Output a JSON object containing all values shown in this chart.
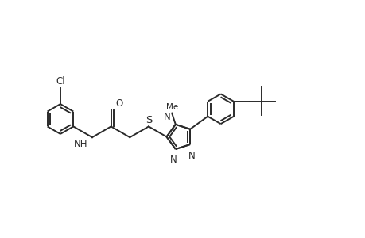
{
  "bg_color": "#ffffff",
  "line_color": "#2a2a2a",
  "line_width": 1.4,
  "font_size": 8.5,
  "figsize": [
    4.6,
    3.0
  ],
  "dpi": 100,
  "xlim": [
    0,
    9.2
  ],
  "ylim": [
    0,
    3.5
  ]
}
